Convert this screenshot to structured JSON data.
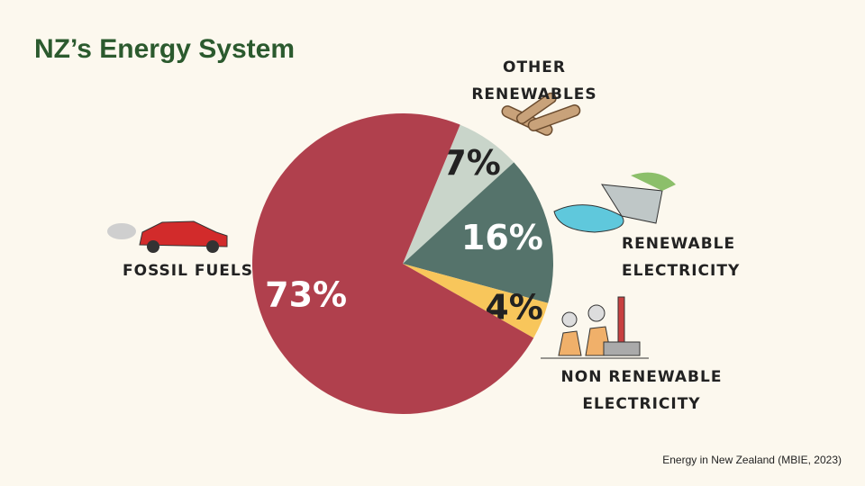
{
  "chart_data": {
    "type": "pie",
    "title": "NZ’s Energy System",
    "categories": [
      "OTHER RENEWABLES",
      "RENEWABLE ELECTRICITY",
      "NON RENEWABLE ELECTRICITY",
      "FOSSIL FUELS"
    ],
    "values": [
      7,
      16,
      4,
      73
    ],
    "value_labels": [
      "7%",
      "16%",
      "4%",
      "73%"
    ],
    "colors": [
      "#c9d5ca",
      "#55736b",
      "#f8c65b",
      "#b0404d"
    ],
    "source": "Energy in New Zealand (MBIE, 2023)"
  }
}
